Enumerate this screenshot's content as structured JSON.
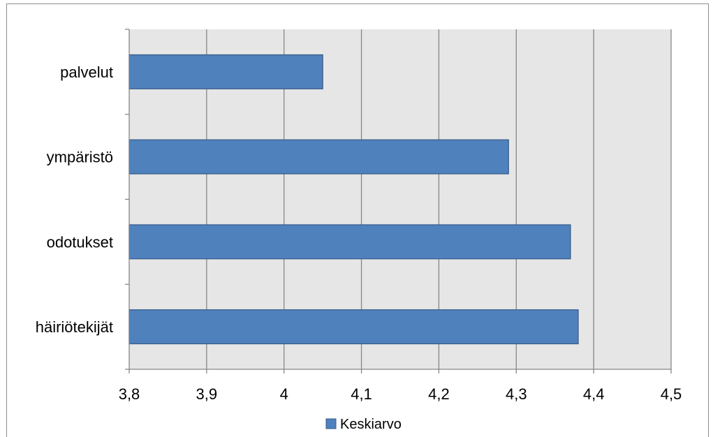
{
  "chart_data": {
    "type": "bar",
    "orientation": "horizontal",
    "categories": [
      "palvelut",
      "ympäristö",
      "odotukset",
      "häiriötekijät"
    ],
    "series": [
      {
        "name": "Keskiarvo",
        "values": [
          4.05,
          4.29,
          4.37,
          4.38
        ],
        "color": "#4f81bd"
      }
    ],
    "xlim": [
      3.8,
      4.5
    ],
    "x_ticks": [
      "3,8",
      "3,9",
      "4",
      "4,1",
      "4,2",
      "4,3",
      "4,4",
      "4,5"
    ],
    "x_tick_values": [
      3.8,
      3.9,
      4.0,
      4.1,
      4.2,
      4.3,
      4.4,
      4.5
    ],
    "grid": true,
    "plot_background": "#e6e6e6",
    "legend_position": "bottom",
    "title": "",
    "xlabel": "",
    "ylabel": ""
  }
}
